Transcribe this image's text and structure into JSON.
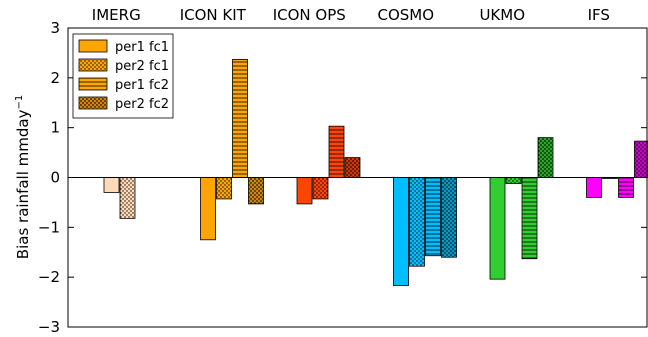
{
  "chart_data": {
    "type": "bar",
    "title": "",
    "xlabel": "",
    "ylabel": "Bias rainfall mmday",
    "ylabel_superscript": "−1",
    "ylim": [
      -3,
      3
    ],
    "yticks": [
      -3,
      -2,
      -1,
      0,
      1,
      2,
      3
    ],
    "grid": false,
    "legend_position": "top-left",
    "legend": [
      {
        "label": "per1 fc1",
        "pattern": "solid"
      },
      {
        "label": "per2 fc1",
        "pattern": "dots"
      },
      {
        "label": "per1 fc2",
        "pattern": "hlines"
      },
      {
        "label": "per2 fc2",
        "pattern": "crosshatch"
      }
    ],
    "legend_color": "#ffa500",
    "groups": [
      {
        "name": "IMERG",
        "color": "#ffdab9",
        "values": [
          -0.3,
          -0.82,
          null,
          null
        ]
      },
      {
        "name": "ICON KIT",
        "color": "#ffa500",
        "values": [
          -1.25,
          -0.43,
          2.37,
          -0.53
        ]
      },
      {
        "name": "ICON OPS",
        "color": "#ff4500",
        "values": [
          -0.53,
          -0.43,
          1.03,
          0.4
        ]
      },
      {
        "name": "COSMO",
        "color": "#00bfff",
        "values": [
          -2.17,
          -1.78,
          -1.57,
          -1.6
        ]
      },
      {
        "name": "UKMO",
        "color": "#32cd32",
        "values": [
          -2.04,
          -0.12,
          -1.63,
          0.8
        ]
      },
      {
        "name": "IFS",
        "color": "#ff00ff",
        "values": [
          -0.4,
          -0.02,
          -0.4,
          0.73
        ]
      }
    ]
  }
}
